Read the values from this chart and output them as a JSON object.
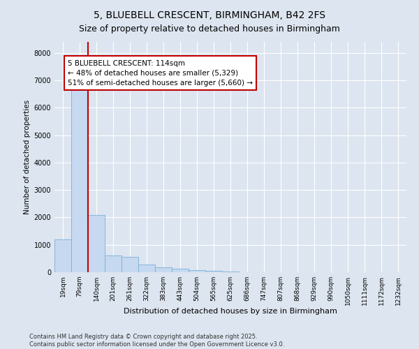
{
  "title": "5, BLUEBELL CRESCENT, BIRMINGHAM, B42 2FS",
  "subtitle": "Size of property relative to detached houses in Birmingham",
  "xlabel": "Distribution of detached houses by size in Birmingham",
  "ylabel": "Number of detached properties",
  "categories": [
    "19sqm",
    "79sqm",
    "140sqm",
    "201sqm",
    "261sqm",
    "322sqm",
    "383sqm",
    "443sqm",
    "504sqm",
    "565sqm",
    "625sqm",
    "686sqm",
    "747sqm",
    "807sqm",
    "868sqm",
    "929sqm",
    "990sqm",
    "1050sqm",
    "1111sqm",
    "1172sqm",
    "1232sqm"
  ],
  "values": [
    1200,
    6700,
    2100,
    600,
    550,
    290,
    185,
    120,
    80,
    50,
    30,
    10,
    5,
    3,
    0,
    0,
    0,
    0,
    0,
    0,
    0
  ],
  "bar_color": "#c6d9f0",
  "bar_edge_color": "#7bafd4",
  "vline_x_idx": 2,
  "vline_color": "#c00000",
  "annotation_text": "5 BLUEBELL CRESCENT: 114sqm\n← 48% of detached houses are smaller (5,329)\n51% of semi-detached houses are larger (5,660) →",
  "annotation_box_color": "white",
  "annotation_box_edge": "#c00000",
  "background_color": "#dde5f0",
  "plot_bg_color": "#dde5f0",
  "ylim": [
    0,
    8400
  ],
  "yticks": [
    0,
    1000,
    2000,
    3000,
    4000,
    5000,
    6000,
    7000,
    8000
  ],
  "footer_text": "Contains HM Land Registry data © Crown copyright and database right 2025.\nContains public sector information licensed under the Open Government Licence v3.0.",
  "title_fontsize": 10,
  "tick_fontsize": 6.5,
  "footer_fontsize": 6
}
